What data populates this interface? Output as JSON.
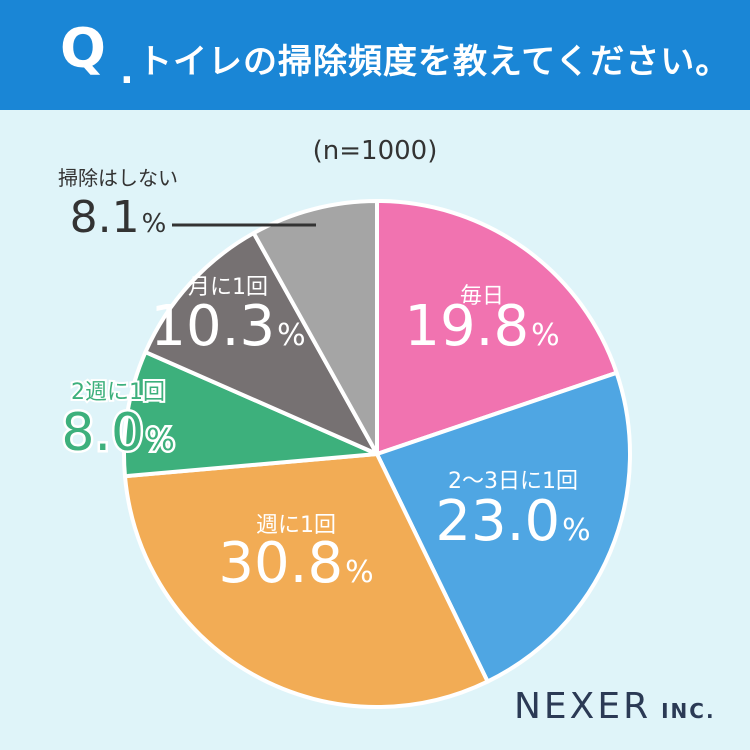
{
  "header": {
    "q_mark": "Q",
    "q_dot": ".",
    "question": "トイレの掃除頻度を教えてください。"
  },
  "sample": "(n=1000)",
  "brand": {
    "name": "NEXER",
    "suffix": "INC."
  },
  "colors": {
    "header_bg": "#1a86d6",
    "background": "#dff4f9"
  },
  "chart_data": {
    "type": "pie",
    "start_angle_deg": 0,
    "direction": "clockwise",
    "unit": "%",
    "slices": [
      {
        "label": "毎日",
        "value": 19.8,
        "value_text": "19.8",
        "color": "#f173b0",
        "text_color": "#ffffff"
      },
      {
        "label": "2〜3日に1回",
        "value": 23.0,
        "value_text": "23.0",
        "color": "#4fa6e3",
        "text_color": "#ffffff"
      },
      {
        "label": "週に1回",
        "value": 30.8,
        "value_text": "30.8",
        "color": "#f2ac55",
        "text_color": "#ffffff"
      },
      {
        "label": "2週に1回",
        "value": 8.0,
        "value_text": "8.0",
        "color": "#3db07c",
        "text_color": "#3db07c"
      },
      {
        "label": "月に1回",
        "value": 10.3,
        "value_text": "10.3",
        "color": "#767172",
        "text_color": "#ffffff"
      },
      {
        "label": "掃除はしない",
        "value": 8.1,
        "value_text": "8.1",
        "color": "#a5a5a5",
        "text_color": "#333333"
      }
    ]
  }
}
